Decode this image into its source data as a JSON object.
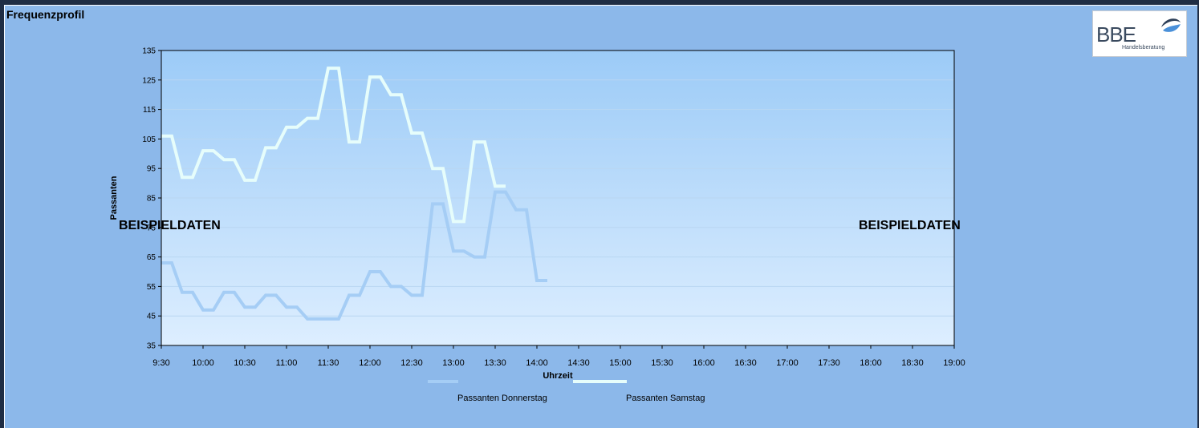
{
  "page": {
    "title": "Frequenzprofil"
  },
  "logo": {
    "text": "BBE",
    "subtext": "Handelsberatung"
  },
  "watermark": {
    "left": "BEISPIELDATEN",
    "right": "BEISPIELDATEN"
  },
  "colors": {
    "background": "#8cb8ea",
    "plot_top": "#9ccbf7",
    "plot_bottom": "#ddeeff",
    "series_donnerstag": "#a5cdf5",
    "series_samstag": "#e6fdfb"
  },
  "chart_data": {
    "type": "line",
    "title": "",
    "xlabel": "Uhrzeit",
    "ylabel": "Passanten",
    "ylim": [
      35,
      135
    ],
    "yticks": [
      35,
      45,
      55,
      65,
      75,
      85,
      95,
      105,
      115,
      125,
      135
    ],
    "xticks": [
      "9:30",
      "10:00",
      "10:30",
      "11:00",
      "11:30",
      "12:00",
      "12:30",
      "13:00",
      "13:30",
      "14:00",
      "14:30",
      "15:00",
      "15:30",
      "16:00",
      "16:30",
      "17:00",
      "17:30",
      "18:00",
      "18:30",
      "19:00"
    ],
    "grid": true,
    "legend": "bottom",
    "series": [
      {
        "name": "Passanten Donnerstag",
        "color": "#a5cdf5",
        "points": [
          [
            0,
            63
          ],
          [
            0.25,
            63
          ],
          [
            0.5,
            53
          ],
          [
            0.75,
            53
          ],
          [
            1,
            47
          ],
          [
            1.25,
            47
          ],
          [
            1.5,
            53
          ],
          [
            1.75,
            53
          ],
          [
            2,
            48
          ],
          [
            2.25,
            48
          ],
          [
            2.5,
            52
          ],
          [
            2.75,
            52
          ],
          [
            3,
            48
          ],
          [
            3.25,
            48
          ],
          [
            3.5,
            44
          ],
          [
            3.75,
            44
          ],
          [
            4,
            44
          ],
          [
            4.25,
            44
          ],
          [
            4.5,
            52
          ],
          [
            4.75,
            52
          ],
          [
            5,
            60
          ],
          [
            5.25,
            60
          ],
          [
            5.5,
            55
          ],
          [
            5.75,
            55
          ],
          [
            6,
            52
          ],
          [
            6.25,
            52
          ],
          [
            6.5,
            83
          ],
          [
            6.75,
            83
          ],
          [
            7,
            67
          ],
          [
            7.25,
            67
          ],
          [
            7.5,
            65
          ],
          [
            7.75,
            65
          ],
          [
            8,
            87
          ],
          [
            8.25,
            87
          ],
          [
            8.5,
            81
          ],
          [
            8.75,
            81
          ],
          [
            9,
            57
          ],
          [
            9.25,
            57
          ]
        ]
      },
      {
        "name": "Passanten Samstag",
        "color": "#e6fdfb",
        "points": [
          [
            0,
            106
          ],
          [
            0.25,
            106
          ],
          [
            0.5,
            92
          ],
          [
            0.75,
            92
          ],
          [
            1,
            101
          ],
          [
            1.25,
            101
          ],
          [
            1.5,
            98
          ],
          [
            1.75,
            98
          ],
          [
            2,
            91
          ],
          [
            2.25,
            91
          ],
          [
            2.5,
            102
          ],
          [
            2.75,
            102
          ],
          [
            3,
            109
          ],
          [
            3.25,
            109
          ],
          [
            3.5,
            112
          ],
          [
            3.75,
            112
          ],
          [
            4,
            129
          ],
          [
            4.25,
            129
          ],
          [
            4.5,
            104
          ],
          [
            4.75,
            104
          ],
          [
            5,
            126
          ],
          [
            5.25,
            126
          ],
          [
            5.5,
            120
          ],
          [
            5.75,
            120
          ],
          [
            6,
            107
          ],
          [
            6.25,
            107
          ],
          [
            6.5,
            95
          ],
          [
            6.75,
            95
          ],
          [
            7,
            77
          ],
          [
            7.25,
            77
          ],
          [
            7.5,
            104
          ],
          [
            7.75,
            104
          ],
          [
            8,
            89
          ],
          [
            8.25,
            89
          ]
        ]
      }
    ]
  }
}
